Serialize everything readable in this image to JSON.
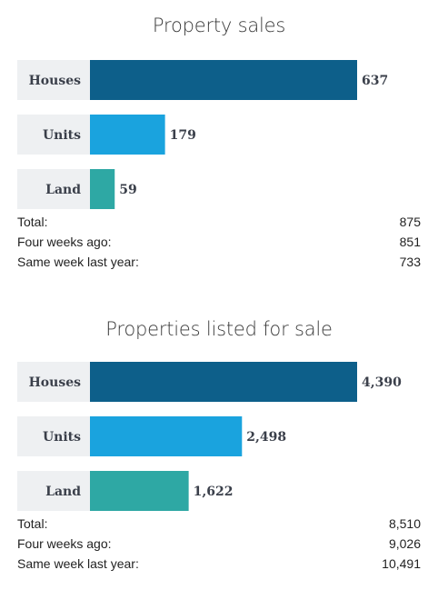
{
  "charts": [
    {
      "title": "Property sales",
      "stats": [
        {
          "label": "Total:",
          "value": "875"
        },
        {
          "label": "Four weeks ago:",
          "value": "851"
        },
        {
          "label": "Same week last year:",
          "value": "733"
        }
      ]
    },
    {
      "title": "Properties listed for sale",
      "stats": [
        {
          "label": "Total:",
          "value": "8,510"
        },
        {
          "label": "Four weeks ago:",
          "value": "9,026"
        },
        {
          "label": "Same week last year:",
          "value": "10,491"
        }
      ]
    }
  ],
  "colors": {
    "Houses": "#0d5f8a",
    "Units": "#1aa3de",
    "Land": "#2ea8a4"
  },
  "chart_data": [
    {
      "type": "bar",
      "orientation": "horizontal",
      "title": "Property sales",
      "categories": [
        "Houses",
        "Units",
        "Land"
      ],
      "values": [
        637,
        179,
        59
      ],
      "value_labels": [
        "637",
        "179",
        "59"
      ]
    },
    {
      "type": "bar",
      "orientation": "horizontal",
      "title": "Properties listed for sale",
      "categories": [
        "Houses",
        "Units",
        "Land"
      ],
      "values": [
        4390,
        2498,
        1622
      ],
      "value_labels": [
        "4,390",
        "2,498",
        "1,622"
      ]
    }
  ]
}
